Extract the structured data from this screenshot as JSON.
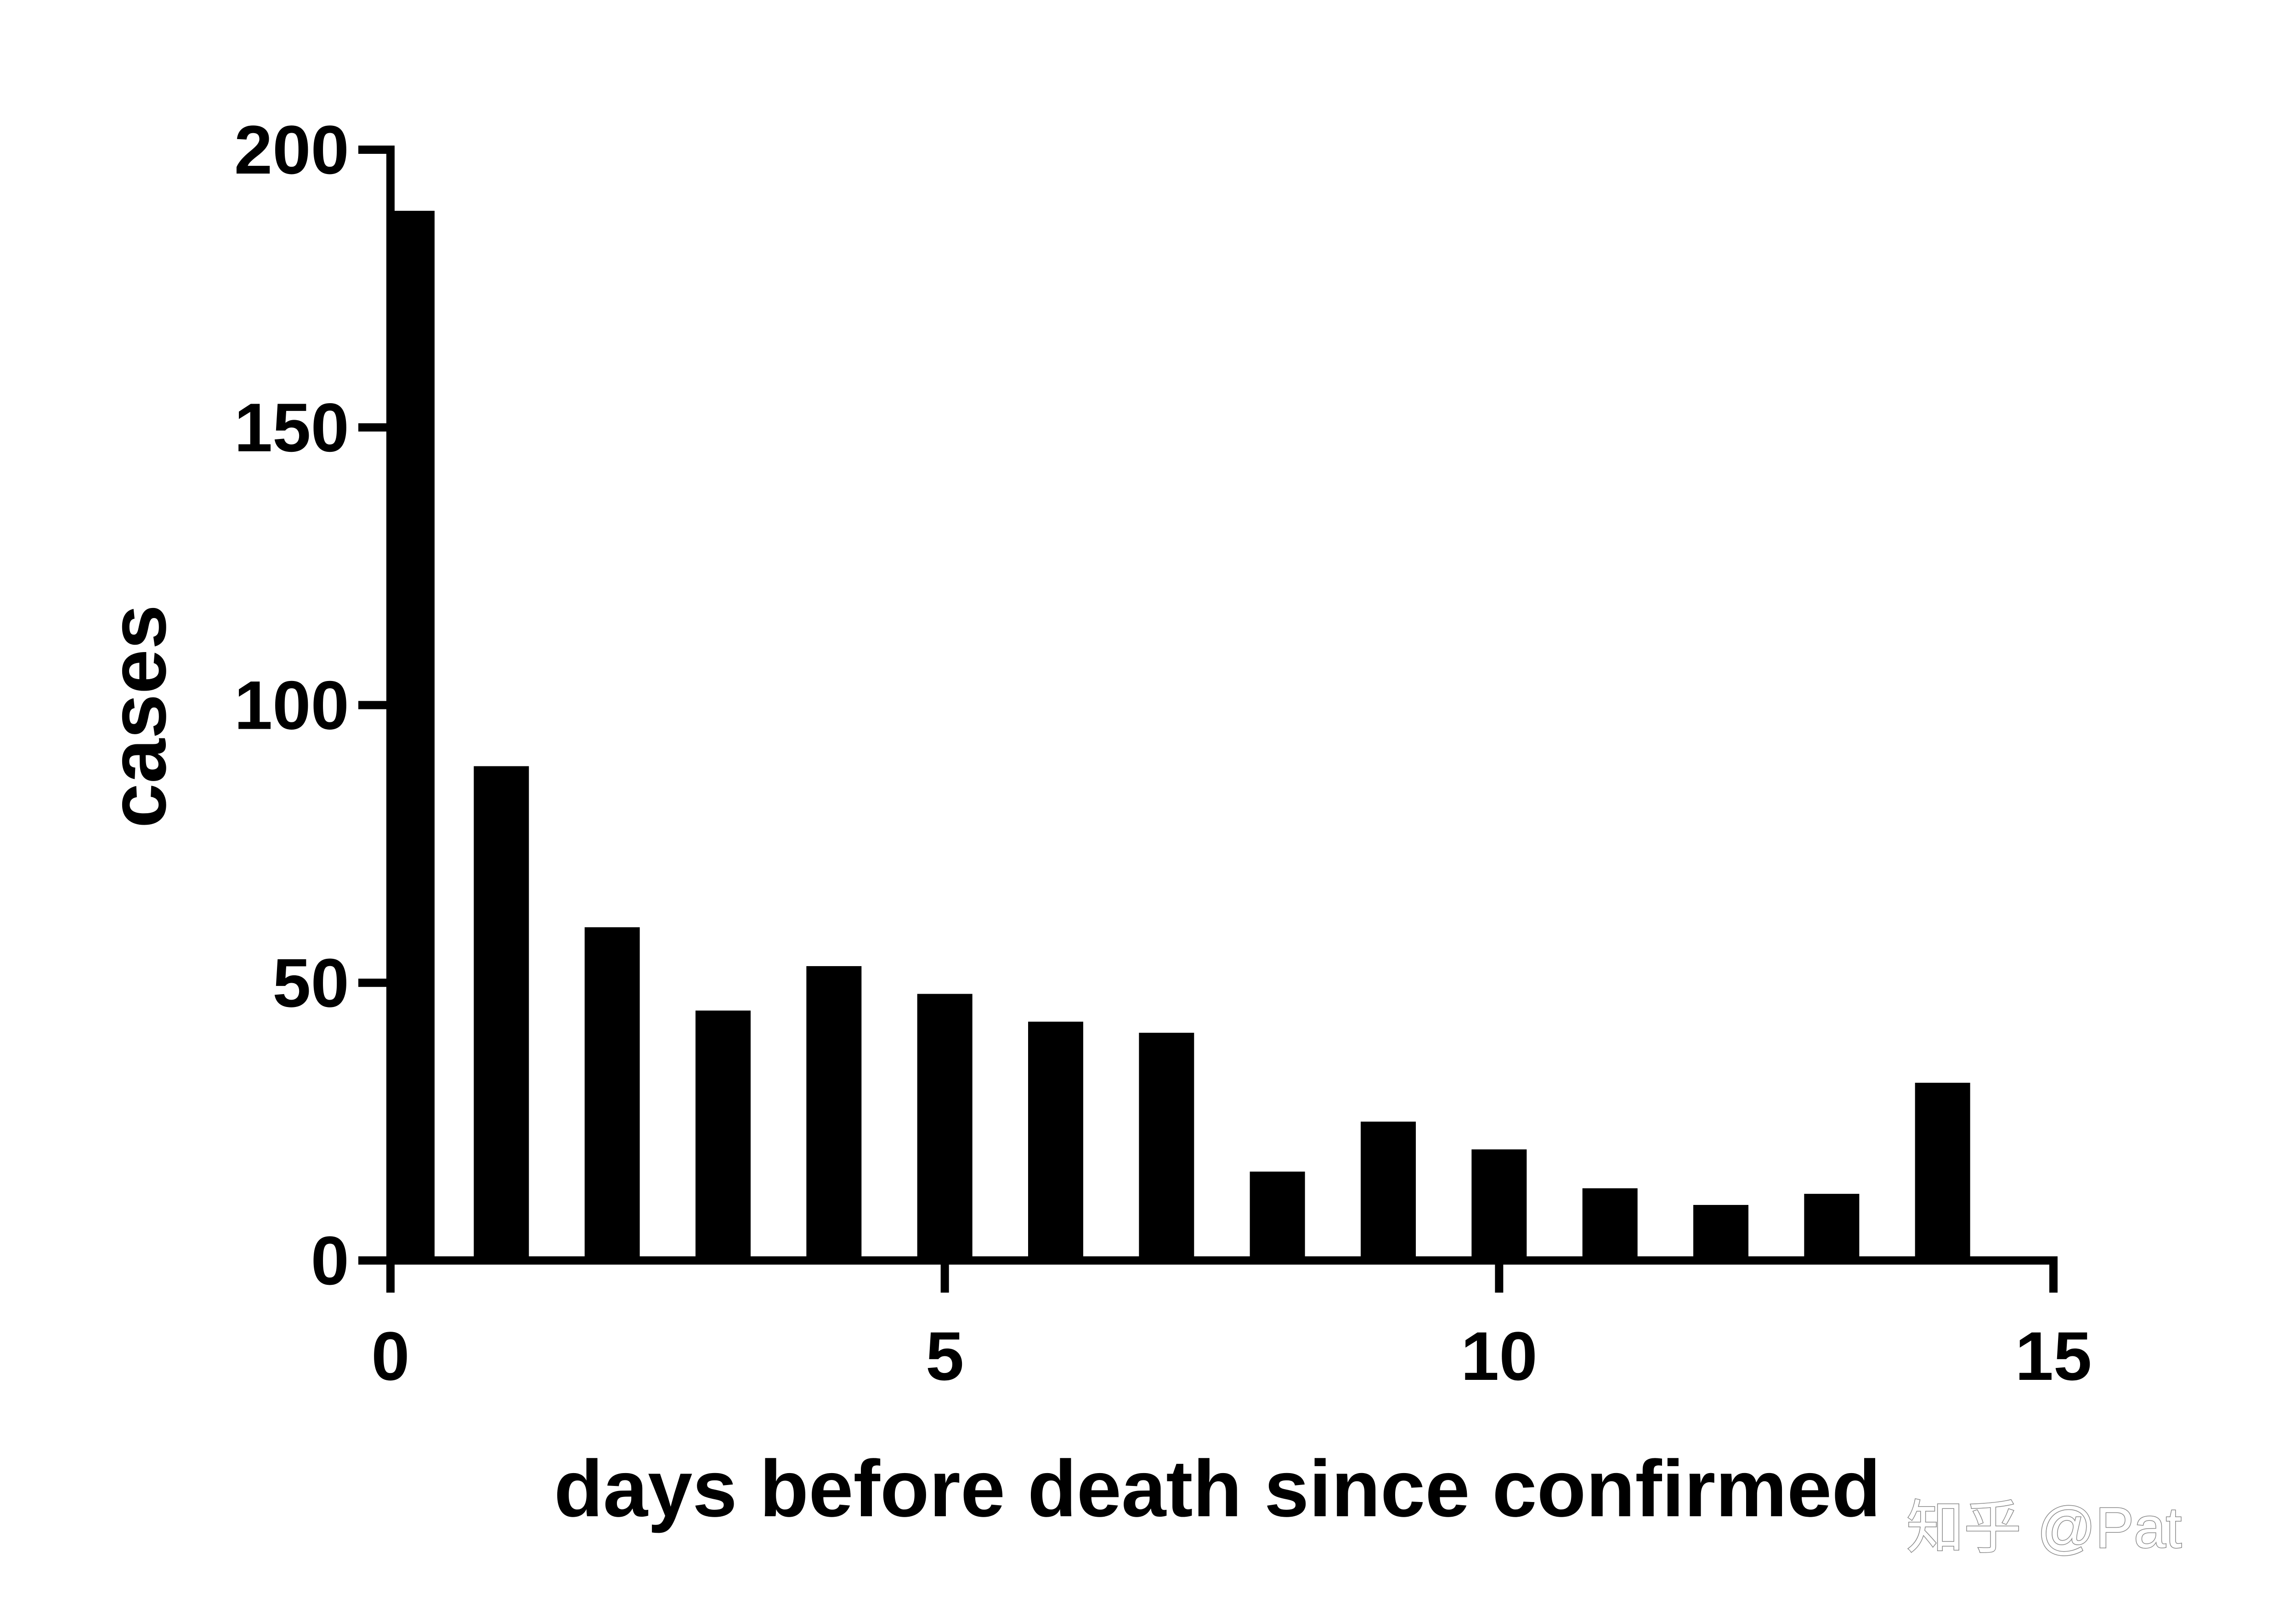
{
  "chart_data": {
    "type": "bar",
    "xlabel": "days before death since confirmed",
    "ylabel": "cases",
    "x": [
      0,
      1,
      2,
      3,
      4,
      5,
      6,
      7,
      8,
      9,
      10,
      11,
      12,
      13,
      14
    ],
    "values": [
      189,
      89,
      60,
      45,
      53,
      48,
      43,
      41,
      16,
      25,
      20,
      13,
      10,
      12,
      32
    ],
    "xlim": [
      0,
      15
    ],
    "ylim": [
      0,
      200
    ],
    "xticks": [
      0,
      5,
      10,
      15
    ],
    "yticks": [
      0,
      50,
      100,
      150,
      200
    ],
    "grid": false,
    "legend": "none",
    "bar_color": "#000000"
  },
  "watermark": "知乎 @Pat"
}
